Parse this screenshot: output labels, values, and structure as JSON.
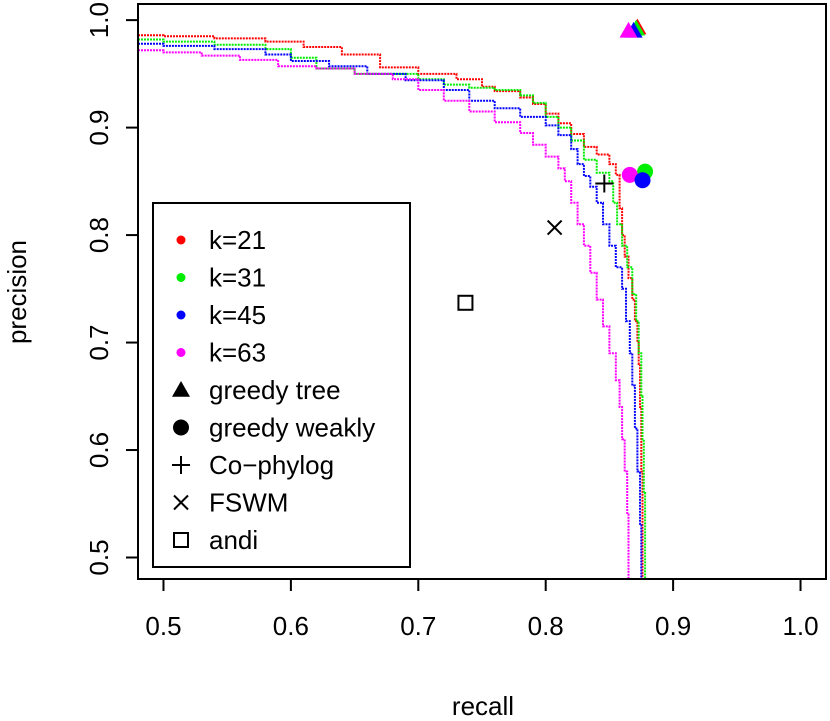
{
  "chart_data": {
    "type": "line",
    "xlabel": "recall",
    "ylabel": "precision",
    "xlim": [
      0.48,
      1.02
    ],
    "ylim": [
      0.48,
      1.015
    ],
    "x_ticks": [
      "0.5",
      "0.6",
      "0.7",
      "0.8",
      "0.9",
      "1.0"
    ],
    "y_ticks": [
      "0.5",
      "0.6",
      "0.7",
      "0.8",
      "0.9",
      "1.0"
    ],
    "x_tick_values": [
      0.5,
      0.6,
      0.7,
      0.8,
      0.9,
      1.0
    ],
    "y_tick_values": [
      0.5,
      0.6,
      0.7,
      0.8,
      0.9,
      1.0
    ],
    "grid": false,
    "legend_position": "bottom-left",
    "series": [
      {
        "name": "k=21",
        "color": "#ff0000",
        "points": [
          [
            0.48,
            0.986
          ],
          [
            0.5,
            0.985
          ],
          [
            0.54,
            0.983
          ],
          [
            0.58,
            0.98
          ],
          [
            0.61,
            0.975
          ],
          [
            0.64,
            0.968
          ],
          [
            0.67,
            0.956
          ],
          [
            0.7,
            0.95
          ],
          [
            0.73,
            0.945
          ],
          [
            0.75,
            0.938
          ],
          [
            0.76,
            0.934
          ],
          [
            0.78,
            0.928
          ],
          [
            0.79,
            0.922
          ],
          [
            0.8,
            0.913
          ],
          [
            0.81,
            0.904
          ],
          [
            0.82,
            0.894
          ],
          [
            0.83,
            0.882
          ],
          [
            0.84,
            0.875
          ],
          [
            0.85,
            0.866
          ],
          [
            0.855,
            0.856
          ],
          [
            0.858,
            0.825
          ],
          [
            0.86,
            0.8
          ],
          [
            0.862,
            0.78
          ],
          [
            0.865,
            0.76
          ],
          [
            0.868,
            0.74
          ],
          [
            0.87,
            0.72
          ],
          [
            0.872,
            0.7
          ],
          [
            0.873,
            0.68
          ],
          [
            0.874,
            0.64
          ],
          [
            0.875,
            0.58
          ],
          [
            0.876,
            0.48
          ]
        ]
      },
      {
        "name": "k=31",
        "color": "#00ee00",
        "points": [
          [
            0.48,
            0.982
          ],
          [
            0.5,
            0.98
          ],
          [
            0.54,
            0.977
          ],
          [
            0.58,
            0.973
          ],
          [
            0.6,
            0.965
          ],
          [
            0.62,
            0.955
          ],
          [
            0.65,
            0.95
          ],
          [
            0.7,
            0.945
          ],
          [
            0.72,
            0.94
          ],
          [
            0.74,
            0.937
          ],
          [
            0.76,
            0.935
          ],
          [
            0.78,
            0.93
          ],
          [
            0.79,
            0.923
          ],
          [
            0.8,
            0.91
          ],
          [
            0.81,
            0.9
          ],
          [
            0.82,
            0.888
          ],
          [
            0.83,
            0.87
          ],
          [
            0.84,
            0.858
          ],
          [
            0.85,
            0.85
          ],
          [
            0.853,
            0.83
          ],
          [
            0.856,
            0.81
          ],
          [
            0.86,
            0.79
          ],
          [
            0.864,
            0.77
          ],
          [
            0.868,
            0.745
          ],
          [
            0.871,
            0.72
          ],
          [
            0.873,
            0.69
          ],
          [
            0.875,
            0.65
          ],
          [
            0.876,
            0.61
          ],
          [
            0.877,
            0.56
          ],
          [
            0.878,
            0.48
          ]
        ]
      },
      {
        "name": "k=45",
        "color": "#0000ff",
        "points": [
          [
            0.48,
            0.978
          ],
          [
            0.5,
            0.976
          ],
          [
            0.54,
            0.973
          ],
          [
            0.58,
            0.968
          ],
          [
            0.6,
            0.962
          ],
          [
            0.63,
            0.957
          ],
          [
            0.66,
            0.95
          ],
          [
            0.69,
            0.944
          ],
          [
            0.72,
            0.935
          ],
          [
            0.74,
            0.925
          ],
          [
            0.76,
            0.918
          ],
          [
            0.78,
            0.91
          ],
          [
            0.8,
            0.902
          ],
          [
            0.81,
            0.893
          ],
          [
            0.82,
            0.88
          ],
          [
            0.825,
            0.866
          ],
          [
            0.83,
            0.855
          ],
          [
            0.835,
            0.845
          ],
          [
            0.84,
            0.83
          ],
          [
            0.845,
            0.81
          ],
          [
            0.85,
            0.79
          ],
          [
            0.855,
            0.77
          ],
          [
            0.86,
            0.75
          ],
          [
            0.863,
            0.72
          ],
          [
            0.866,
            0.69
          ],
          [
            0.868,
            0.66
          ],
          [
            0.87,
            0.62
          ],
          [
            0.872,
            0.58
          ],
          [
            0.874,
            0.53
          ],
          [
            0.875,
            0.48
          ]
        ]
      },
      {
        "name": "k=63",
        "color": "#ff00ff",
        "points": [
          [
            0.48,
            0.972
          ],
          [
            0.5,
            0.97
          ],
          [
            0.53,
            0.967
          ],
          [
            0.56,
            0.963
          ],
          [
            0.59,
            0.957
          ],
          [
            0.62,
            0.955
          ],
          [
            0.65,
            0.95
          ],
          [
            0.68,
            0.945
          ],
          [
            0.7,
            0.935
          ],
          [
            0.72,
            0.925
          ],
          [
            0.74,
            0.915
          ],
          [
            0.76,
            0.905
          ],
          [
            0.78,
            0.895
          ],
          [
            0.79,
            0.884
          ],
          [
            0.8,
            0.873
          ],
          [
            0.81,
            0.862
          ],
          [
            0.815,
            0.85
          ],
          [
            0.82,
            0.83
          ],
          [
            0.825,
            0.81
          ],
          [
            0.83,
            0.79
          ],
          [
            0.835,
            0.765
          ],
          [
            0.84,
            0.74
          ],
          [
            0.845,
            0.715
          ],
          [
            0.85,
            0.69
          ],
          [
            0.855,
            0.665
          ],
          [
            0.858,
            0.64
          ],
          [
            0.86,
            0.61
          ],
          [
            0.862,
            0.58
          ],
          [
            0.864,
            0.54
          ],
          [
            0.865,
            0.48
          ]
        ]
      }
    ],
    "markers": [
      {
        "name": "greedy tree",
        "shape": "triangle",
        "color": "#ff0000",
        "x": 0.872,
        "y": 0.993
      },
      {
        "name": "greedy tree",
        "shape": "triangle",
        "color": "#00ee00",
        "x": 0.871,
        "y": 0.992
      },
      {
        "name": "greedy tree",
        "shape": "triangle",
        "color": "#0000ff",
        "x": 0.869,
        "y": 0.99
      },
      {
        "name": "greedy tree",
        "shape": "triangle",
        "color": "#ff00ff",
        "x": 0.865,
        "y": 0.99
      },
      {
        "name": "greedy weakly",
        "shape": "circle",
        "color": "#00ee00",
        "x": 0.878,
        "y": 0.859
      },
      {
        "name": "greedy weakly",
        "shape": "circle",
        "color": "#ff00ff",
        "x": 0.866,
        "y": 0.856
      },
      {
        "name": "greedy weakly",
        "shape": "circle",
        "color": "#0000ff",
        "x": 0.876,
        "y": 0.851
      },
      {
        "name": "Co-phylog",
        "shape": "plus",
        "color": "#000000",
        "x": 0.846,
        "y": 0.848
      },
      {
        "name": "FSWM",
        "shape": "cross",
        "color": "#000000",
        "x": 0.807,
        "y": 0.807
      },
      {
        "name": "andi",
        "shape": "square",
        "color": "#000000",
        "x": 0.737,
        "y": 0.737
      }
    ],
    "legend": [
      {
        "label": "k=21",
        "symbol": "dot",
        "color": "#ff0000"
      },
      {
        "label": "k=31",
        "symbol": "dot",
        "color": "#00ee00"
      },
      {
        "label": "k=45",
        "symbol": "dot",
        "color": "#0000ff"
      },
      {
        "label": "k=63",
        "symbol": "dot",
        "color": "#ff00ff"
      },
      {
        "label": "greedy tree",
        "symbol": "triangle",
        "color": "#000000"
      },
      {
        "label": "greedy weakly",
        "symbol": "circle",
        "color": "#000000"
      },
      {
        "label": "Co−phylog",
        "symbol": "plus",
        "color": "#000000"
      },
      {
        "label": "FSWM",
        "symbol": "cross",
        "color": "#000000"
      },
      {
        "label": "andi",
        "symbol": "square",
        "color": "#000000"
      }
    ]
  }
}
